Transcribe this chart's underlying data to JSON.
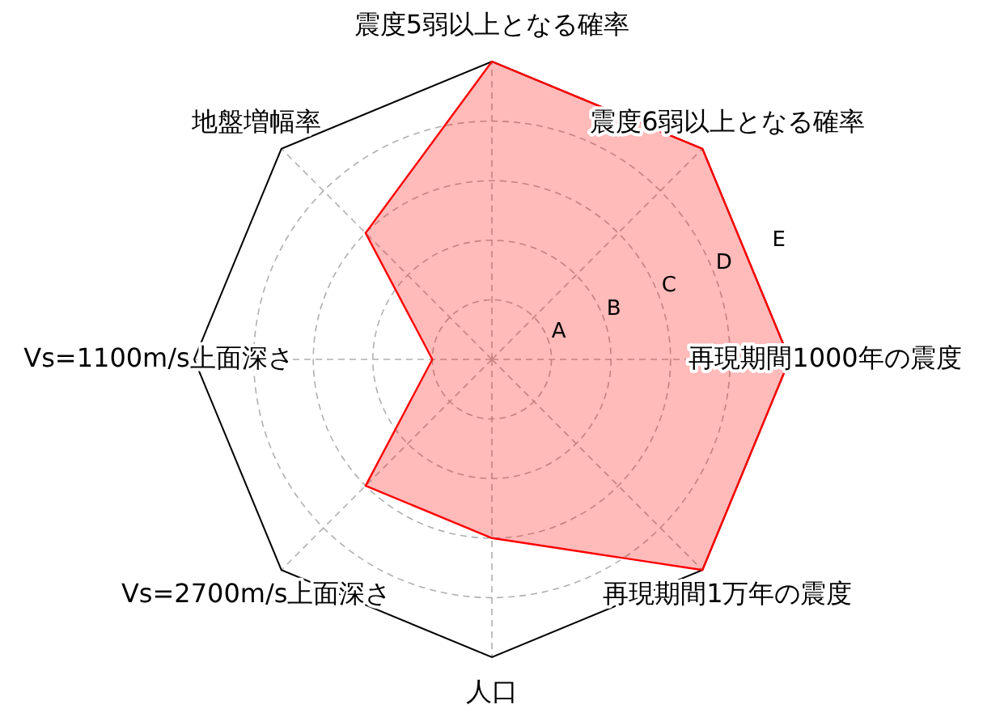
{
  "chart_data": {
    "type": "radar",
    "categories": [
      "震度5弱以上となる確率",
      "震度6弱以上となる確率",
      "再現期間1000年の震度",
      "再現期間1万年の震度",
      "人口",
      "Vs=2700m/s上面深さ",
      "Vs=1100m/s上面深さ",
      "地盤増幅率"
    ],
    "series": [
      {
        "color": "#ff0000",
        "values": [
          5,
          5,
          5,
          5,
          3,
          3,
          1,
          3
        ]
      }
    ],
    "ylim": [
      0,
      5
    ],
    "yticks": [
      {
        "value": 1,
        "label": "A"
      },
      {
        "value": 2,
        "label": "B"
      },
      {
        "value": 3,
        "label": "C"
      },
      {
        "value": 4,
        "label": "D"
      },
      {
        "value": 5,
        "label": "E"
      }
    ],
    "grid": true
  }
}
